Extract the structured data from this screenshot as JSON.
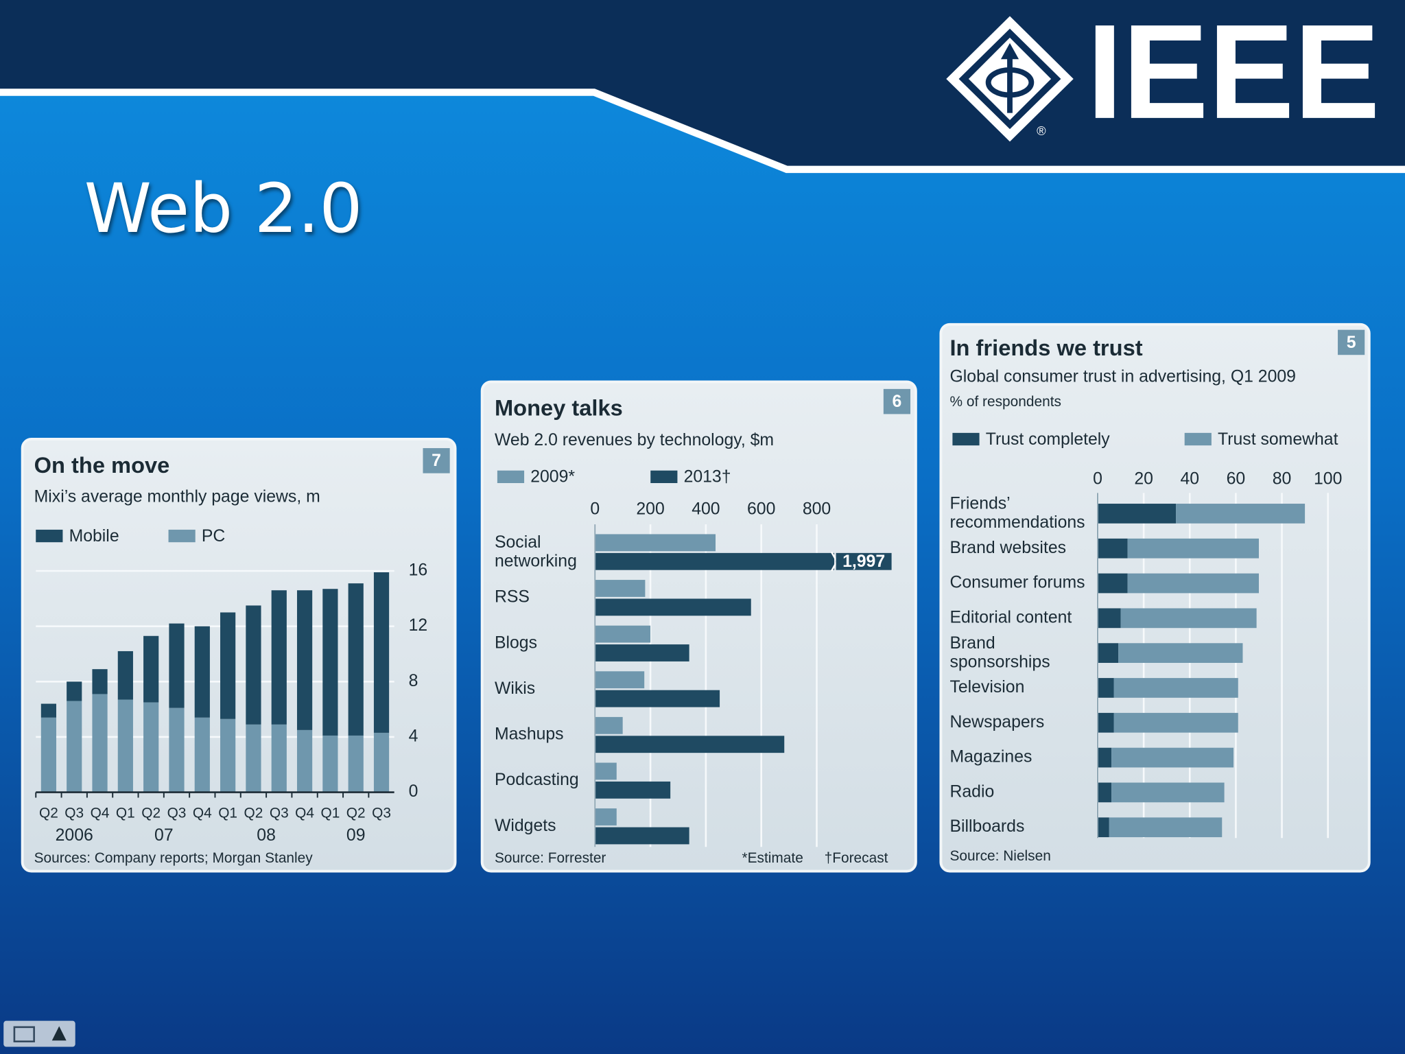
{
  "slide_title": "Web 2.0",
  "logo_text": "IEEE",
  "logo_mark": "®",
  "chart_data": [
    {
      "type": "bar",
      "orientation": "vertical",
      "stacked": true,
      "badge": "7",
      "title": "On the move",
      "subtitle": "Mixi’s average monthly page views, m",
      "categories": [
        "Q2",
        "Q3",
        "Q4",
        "Q1",
        "Q2",
        "Q3",
        "Q4",
        "Q1",
        "Q2",
        "Q3",
        "Q4",
        "Q1",
        "Q2",
        "Q3"
      ],
      "year_groups": [
        {
          "label": "2006",
          "count": 3
        },
        {
          "label": "07",
          "count": 4
        },
        {
          "label": "08",
          "count": 4
        },
        {
          "label": "09",
          "count": 3
        }
      ],
      "series": [
        {
          "name": "Mobile",
          "color": "#1f4a62",
          "values": [
            1.0,
            1.4,
            1.8,
            3.5,
            4.8,
            6.1,
            6.6,
            7.7,
            8.6,
            9.7,
            10.1,
            10.6,
            11.0,
            11.6
          ]
        },
        {
          "name": "PC",
          "color": "#6f97ad",
          "values": [
            5.4,
            6.6,
            7.1,
            6.7,
            6.5,
            6.1,
            5.4,
            5.3,
            4.9,
            4.9,
            4.5,
            4.1,
            4.1,
            4.3
          ]
        }
      ],
      "ylim": [
        0,
        16
      ],
      "yticks": [
        0,
        4,
        8,
        12,
        16
      ],
      "grid": true,
      "source": "Sources: Company reports; Morgan Stanley"
    },
    {
      "type": "bar",
      "orientation": "horizontal",
      "stacked": false,
      "badge": "6",
      "title": "Money talks",
      "subtitle": "Web 2.0 revenues by technology, $m",
      "categories": [
        "Social\nnetworking",
        "RSS",
        "Blogs",
        "Wikis",
        "Mashups",
        "Podcasting",
        "Widgets"
      ],
      "series": [
        {
          "name": "2009*",
          "color": "#6f97ad",
          "values": [
            435,
            181,
            200,
            178,
            100,
            78,
            78
          ]
        },
        {
          "name": "2013†",
          "color": "#1f4a62",
          "values": [
            1997,
            563,
            340,
            450,
            683,
            272,
            340
          ],
          "value_labels": [
            "1,997",
            null,
            null,
            null,
            null,
            null,
            null
          ]
        }
      ],
      "xlim": [
        0,
        1070
      ],
      "xticks": [
        0,
        200,
        400,
        600,
        800
      ],
      "grid": true,
      "source": "Source: Forrester",
      "notes": [
        "*Estimate",
        "†Forecast"
      ]
    },
    {
      "type": "bar",
      "orientation": "horizontal",
      "stacked": true,
      "badge": "5",
      "title": "In friends we trust",
      "subtitle": "Global consumer trust in advertising, Q1 2009",
      "unit": "% of respondents",
      "categories": [
        "Friends’\nrecommendations",
        "Brand websites",
        "Consumer forums",
        "Editorial content",
        "Brand\nsponsorships",
        "Television",
        "Newspapers",
        "Magazines",
        "Radio",
        "Billboards"
      ],
      "series": [
        {
          "name": "Trust completely",
          "color": "#1f4a62",
          "values": [
            34,
            13,
            13,
            10,
            9,
            7,
            7,
            6,
            6,
            5
          ]
        },
        {
          "name": "Trust somewhat",
          "color": "#6f97ad",
          "values": [
            56,
            57,
            57,
            59,
            54,
            54,
            54,
            53,
            49,
            49
          ]
        }
      ],
      "xlim": [
        0,
        100
      ],
      "xticks": [
        0,
        20,
        40,
        60,
        80,
        100
      ],
      "grid": true,
      "source": "Source: Nielsen"
    }
  ]
}
